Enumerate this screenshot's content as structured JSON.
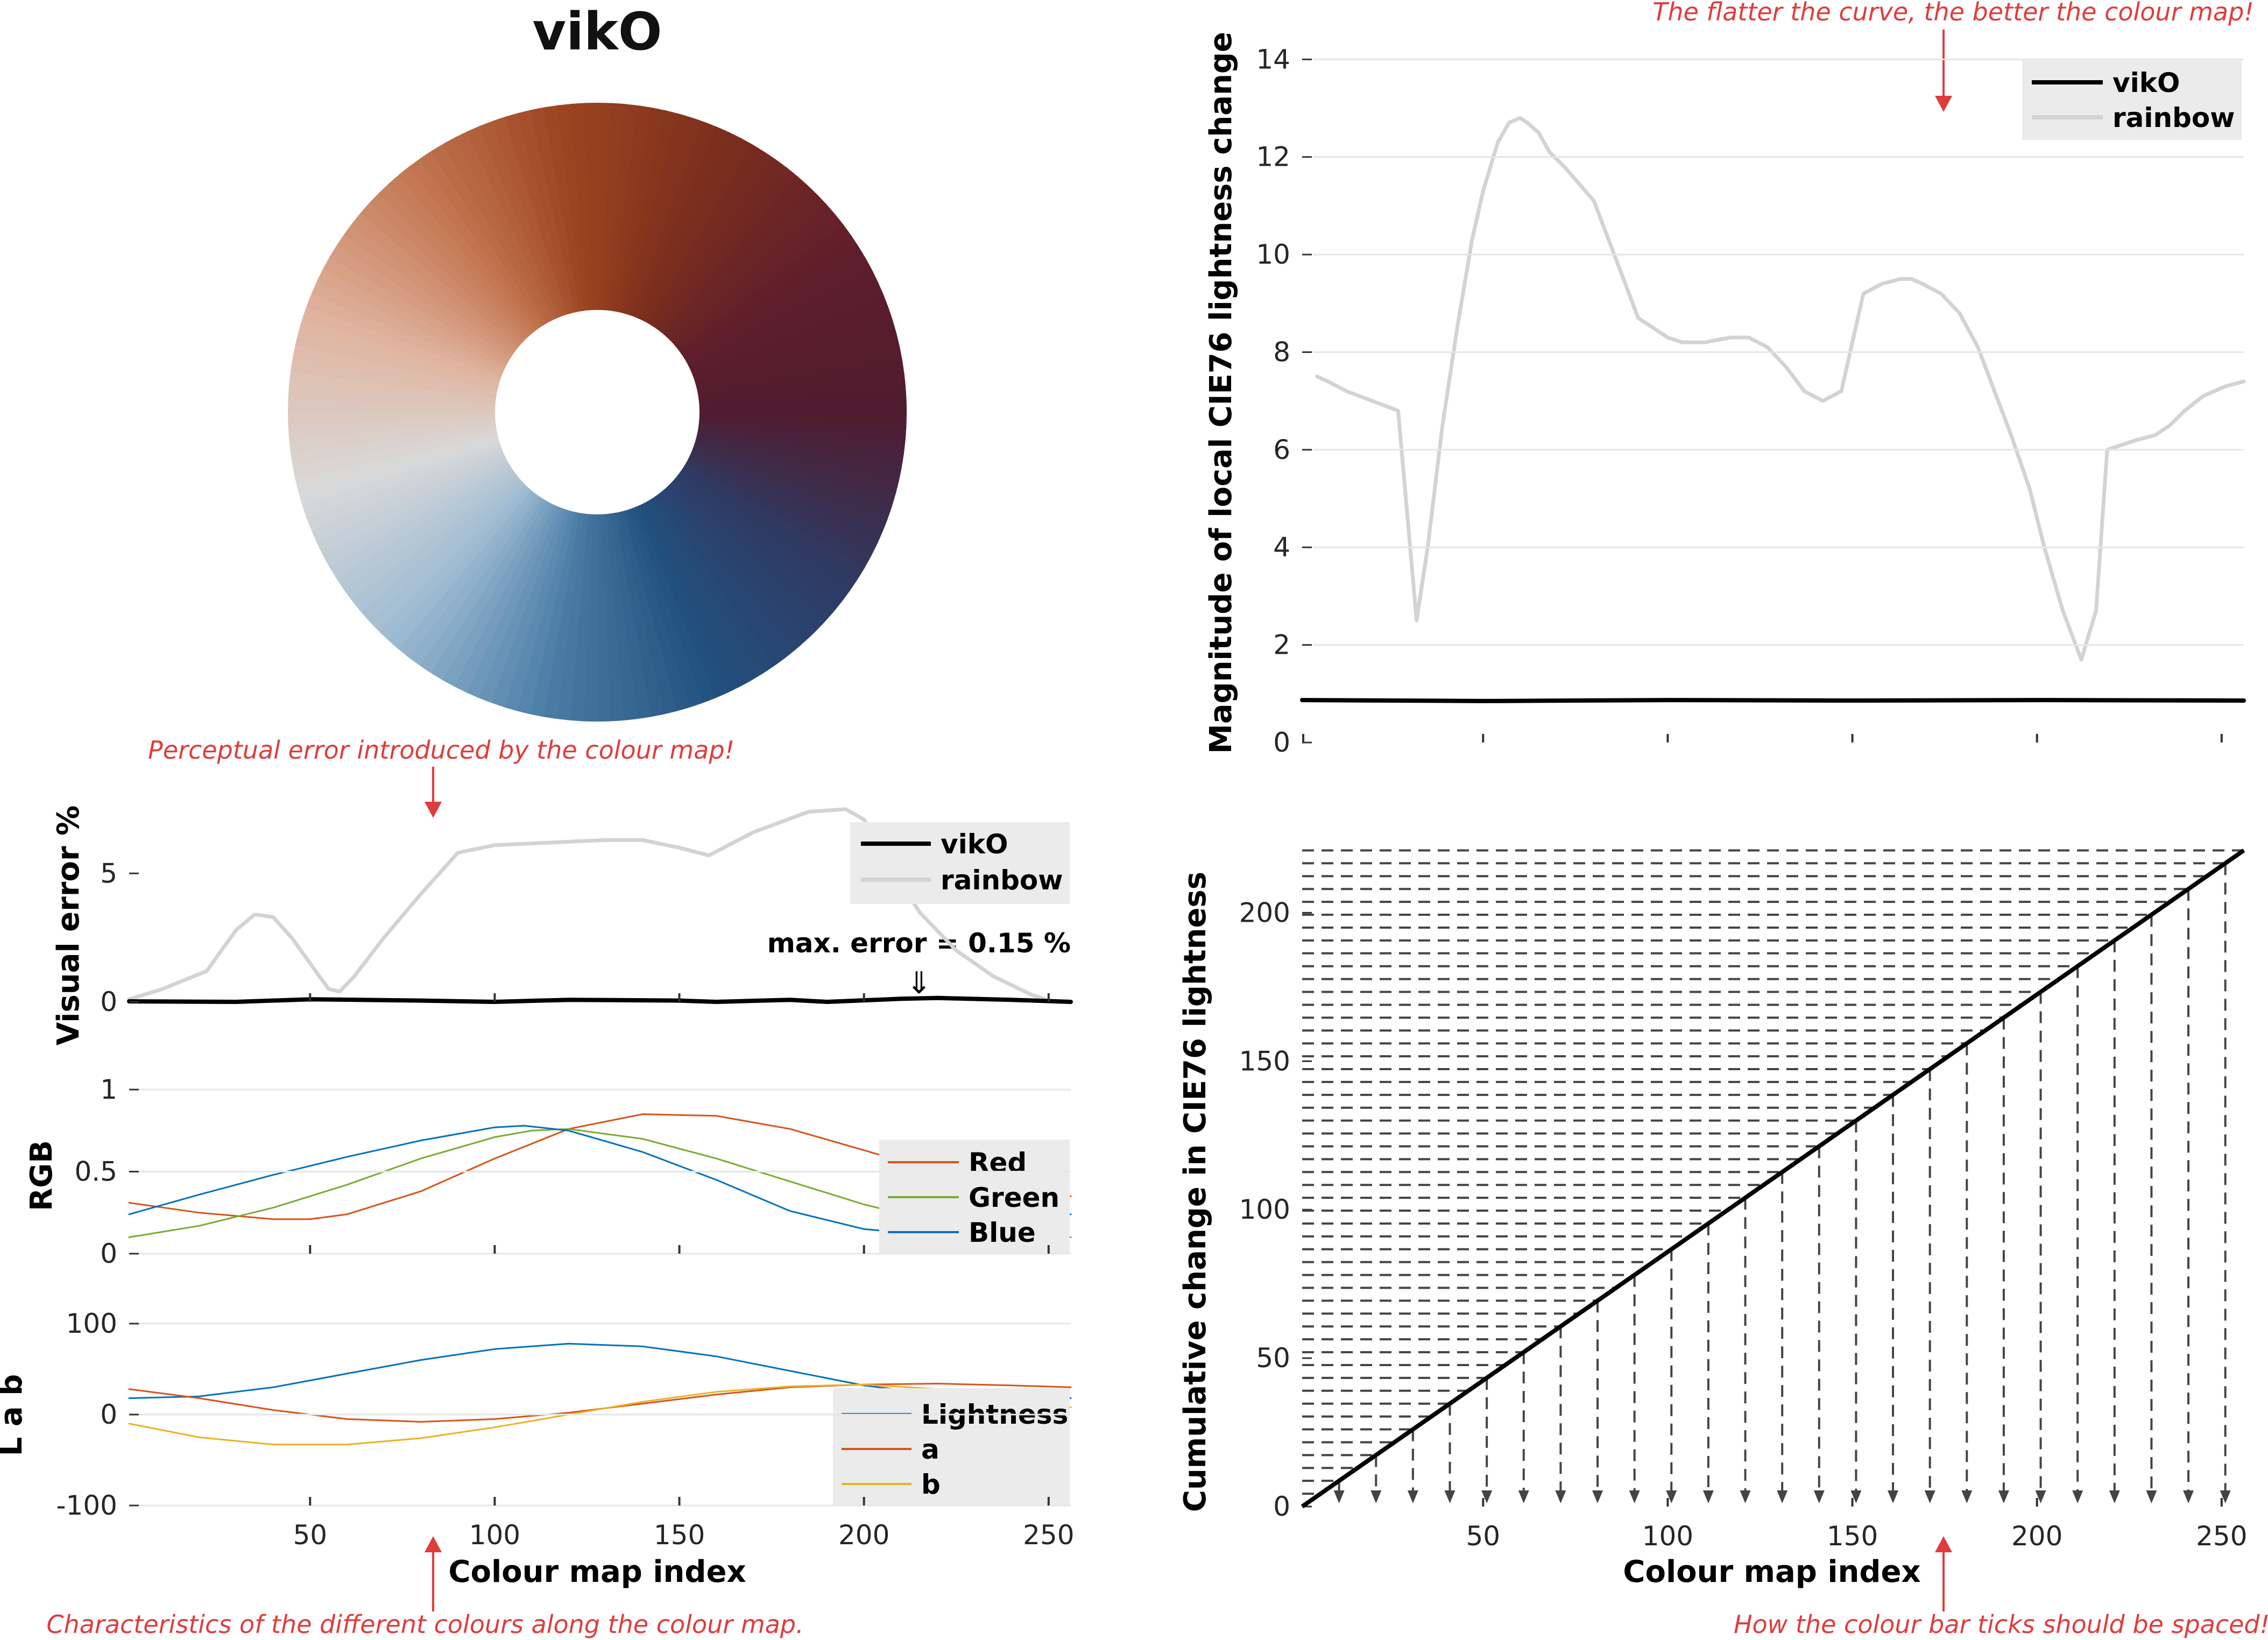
{
  "title": "vikO",
  "colors": {
    "vikO": "#000000",
    "rainbow": "#d3d3d3",
    "red": "#d95319",
    "green": "#77ac30",
    "blue": "#0072bd",
    "lightness": "#0072bd",
    "a": "#d95319",
    "b": "#edb120",
    "annotation": "#e03c3c",
    "grid": "#e6e6e6",
    "legend_bg": "#ebebeb",
    "cumulative_lines": "#444444"
  },
  "annotations": {
    "flatter": "The flatter the curve, the better the colour map!",
    "perceptual": "Perceptual error introduced by the colour map!",
    "characteristics": "Characteristics of the different colours along the colour map.",
    "ticks_spacing": "How the colour bar ticks should be spaced!",
    "max_error": "max. error =  0.15 %",
    "max_error_arrow": "⇓"
  },
  "chart_data": [
    {
      "id": "wheel",
      "type": "other",
      "title": "vikO",
      "color_stops": [
        "#4f1c30",
        "#2f3a63",
        "#22507e",
        "#4a7ca6",
        "#9dbbd2",
        "#d9d9d9",
        "#e0b5a0",
        "#c57a55",
        "#9c4420",
        "#7a2e1d",
        "#5f1e2b",
        "#4f1c30"
      ]
    },
    {
      "id": "visual-error",
      "type": "line",
      "ylabel": "Visual error %",
      "xlim": [
        1,
        256
      ],
      "ylim": [
        0,
        8
      ],
      "yticks": [
        0,
        5
      ],
      "xticks": [
        50,
        100,
        150,
        200,
        250
      ],
      "legend": [
        "vikO",
        "rainbow"
      ],
      "legend_position": "top-right",
      "series": [
        {
          "name": "vikO",
          "x": [
            1,
            30,
            50,
            80,
            100,
            120,
            150,
            160,
            180,
            190,
            210,
            220,
            240,
            256
          ],
          "y": [
            0.02,
            0.0,
            0.1,
            0.05,
            0.0,
            0.08,
            0.05,
            0.0,
            0.08,
            0.0,
            0.12,
            0.15,
            0.08,
            0.0
          ]
        },
        {
          "name": "rainbow",
          "x": [
            1,
            10,
            22,
            30,
            35,
            40,
            45,
            55,
            58,
            62,
            70,
            80,
            90,
            100,
            115,
            130,
            140,
            150,
            158,
            170,
            185,
            195,
            200,
            205,
            215,
            225,
            235,
            245,
            250
          ],
          "y": [
            0.1,
            0.5,
            1.2,
            2.8,
            3.4,
            3.3,
            2.5,
            0.5,
            0.4,
            1.0,
            2.5,
            4.2,
            5.8,
            6.1,
            6.2,
            6.3,
            6.3,
            6.0,
            5.7,
            6.6,
            7.4,
            7.5,
            7.1,
            5.8,
            3.5,
            2.0,
            1.0,
            0.3,
            0.05
          ]
        }
      ]
    },
    {
      "id": "rgb",
      "type": "line",
      "ylabel": "RGB",
      "xlim": [
        1,
        256
      ],
      "ylim": [
        0,
        1
      ],
      "yticks": [
        0,
        0.5,
        1
      ],
      "yticklabels": [
        "0",
        "0.5",
        "1"
      ],
      "xticks": [
        50,
        100,
        150,
        200,
        250
      ],
      "legend": [
        "Red",
        "Green",
        "Blue"
      ],
      "legend_position": "right",
      "series": [
        {
          "name": "Red",
          "x": [
            1,
            20,
            40,
            50,
            60,
            80,
            100,
            120,
            140,
            160,
            180,
            200,
            220,
            240,
            256
          ],
          "y": [
            0.31,
            0.25,
            0.21,
            0.21,
            0.24,
            0.38,
            0.58,
            0.76,
            0.85,
            0.84,
            0.76,
            0.63,
            0.5,
            0.4,
            0.35
          ]
        },
        {
          "name": "Green",
          "x": [
            1,
            20,
            40,
            60,
            80,
            100,
            110,
            120,
            140,
            160,
            180,
            200,
            220,
            240,
            256
          ],
          "y": [
            0.1,
            0.17,
            0.28,
            0.42,
            0.58,
            0.71,
            0.75,
            0.76,
            0.7,
            0.58,
            0.44,
            0.3,
            0.19,
            0.12,
            0.1
          ]
        },
        {
          "name": "Blue",
          "x": [
            1,
            20,
            40,
            60,
            80,
            100,
            108,
            120,
            140,
            160,
            180,
            200,
            210,
            220,
            240,
            256
          ],
          "y": [
            0.24,
            0.36,
            0.48,
            0.59,
            0.69,
            0.77,
            0.78,
            0.75,
            0.62,
            0.45,
            0.26,
            0.15,
            0.13,
            0.13,
            0.18,
            0.24
          ]
        }
      ]
    },
    {
      "id": "lab",
      "type": "line",
      "ylabel": "L a b",
      "xlabel": "Colour map index",
      "xlim": [
        1,
        256
      ],
      "ylim": [
        -100,
        100
      ],
      "yticks": [
        -100,
        0,
        100
      ],
      "xticks": [
        50,
        100,
        150,
        200,
        250
      ],
      "legend": [
        "Lightness",
        "a",
        "b"
      ],
      "legend_position": "bottom-right",
      "series": [
        {
          "name": "Lightness",
          "x": [
            1,
            20,
            40,
            60,
            80,
            100,
            120,
            140,
            160,
            180,
            200,
            220,
            240,
            256
          ],
          "y": [
            18,
            20,
            30,
            45,
            60,
            72,
            78,
            75,
            64,
            48,
            32,
            22,
            18,
            18
          ]
        },
        {
          "name": "a",
          "x": [
            1,
            20,
            40,
            60,
            80,
            100,
            120,
            140,
            160,
            180,
            200,
            220,
            240,
            256
          ],
          "y": [
            28,
            18,
            5,
            -5,
            -8,
            -5,
            2,
            12,
            22,
            30,
            33,
            34,
            32,
            30
          ]
        },
        {
          "name": "b",
          "x": [
            1,
            20,
            40,
            60,
            80,
            100,
            120,
            140,
            160,
            180,
            200,
            220,
            240,
            256
          ],
          "y": [
            -10,
            -25,
            -33,
            -33,
            -26,
            -14,
            0,
            14,
            25,
            31,
            33,
            28,
            18,
            8
          ]
        }
      ]
    },
    {
      "id": "lightness-change",
      "type": "line",
      "ylabel": "Magnitude of local CIE76 lightness change",
      "xlim": [
        1,
        256
      ],
      "ylim": [
        0,
        14.5
      ],
      "yticks": [
        0,
        2,
        4,
        6,
        8,
        10,
        12,
        14
      ],
      "xticks": [
        50,
        100,
        150,
        200,
        250
      ],
      "legend": [
        "vikO",
        "rainbow"
      ],
      "legend_position": "top-right",
      "series": [
        {
          "name": "vikO",
          "x": [
            1,
            50,
            100,
            150,
            200,
            256
          ],
          "y": [
            0.87,
            0.85,
            0.87,
            0.86,
            0.87,
            0.86
          ]
        },
        {
          "name": "rainbow",
          "x": [
            5,
            8,
            13,
            20,
            27,
            32,
            35,
            39,
            43,
            47,
            50,
            54,
            57,
            60,
            62,
            65,
            68,
            72,
            80,
            88,
            92,
            96,
            100,
            104,
            110,
            117,
            122,
            127,
            132,
            137,
            142,
            147,
            153,
            158,
            163,
            166,
            169,
            174,
            179,
            184,
            188,
            193,
            198,
            202,
            207,
            212,
            216,
            219,
            223,
            227,
            232,
            236,
            240,
            245,
            251,
            256
          ],
          "y": [
            7.5,
            7.4,
            7.2,
            7.0,
            6.8,
            2.5,
            4.0,
            6.5,
            8.5,
            10.3,
            11.3,
            12.3,
            12.7,
            12.8,
            12.7,
            12.5,
            12.1,
            11.8,
            11.1,
            9.5,
            8.7,
            8.5,
            8.3,
            8.2,
            8.2,
            8.3,
            8.3,
            8.1,
            7.7,
            7.2,
            7.0,
            7.2,
            9.2,
            9.4,
            9.5,
            9.5,
            9.4,
            9.2,
            8.8,
            8.1,
            7.3,
            6.3,
            5.2,
            4.0,
            2.7,
            1.7,
            2.7,
            6.0,
            6.1,
            6.2,
            6.3,
            6.5,
            6.8,
            7.1,
            7.3,
            7.4
          ]
        }
      ]
    },
    {
      "id": "cumulative",
      "type": "line",
      "ylabel": "Cumulative change in CIE76 lightness",
      "xlabel": "Colour map index",
      "xlim": [
        1,
        256
      ],
      "ylim": [
        0,
        222
      ],
      "yticks": [
        0,
        50,
        100,
        150,
        200
      ],
      "xticks": [
        50,
        100,
        150,
        200,
        250
      ],
      "series": [
        {
          "name": "vikO",
          "x": [
            1,
            256
          ],
          "y": [
            0,
            221
          ]
        }
      ],
      "tick_indices": [
        11,
        21,
        31,
        41,
        51,
        61,
        71,
        81,
        91,
        101,
        111,
        121,
        131,
        141,
        151,
        161,
        171,
        181,
        191,
        201,
        211,
        221,
        231,
        241,
        251
      ]
    }
  ]
}
